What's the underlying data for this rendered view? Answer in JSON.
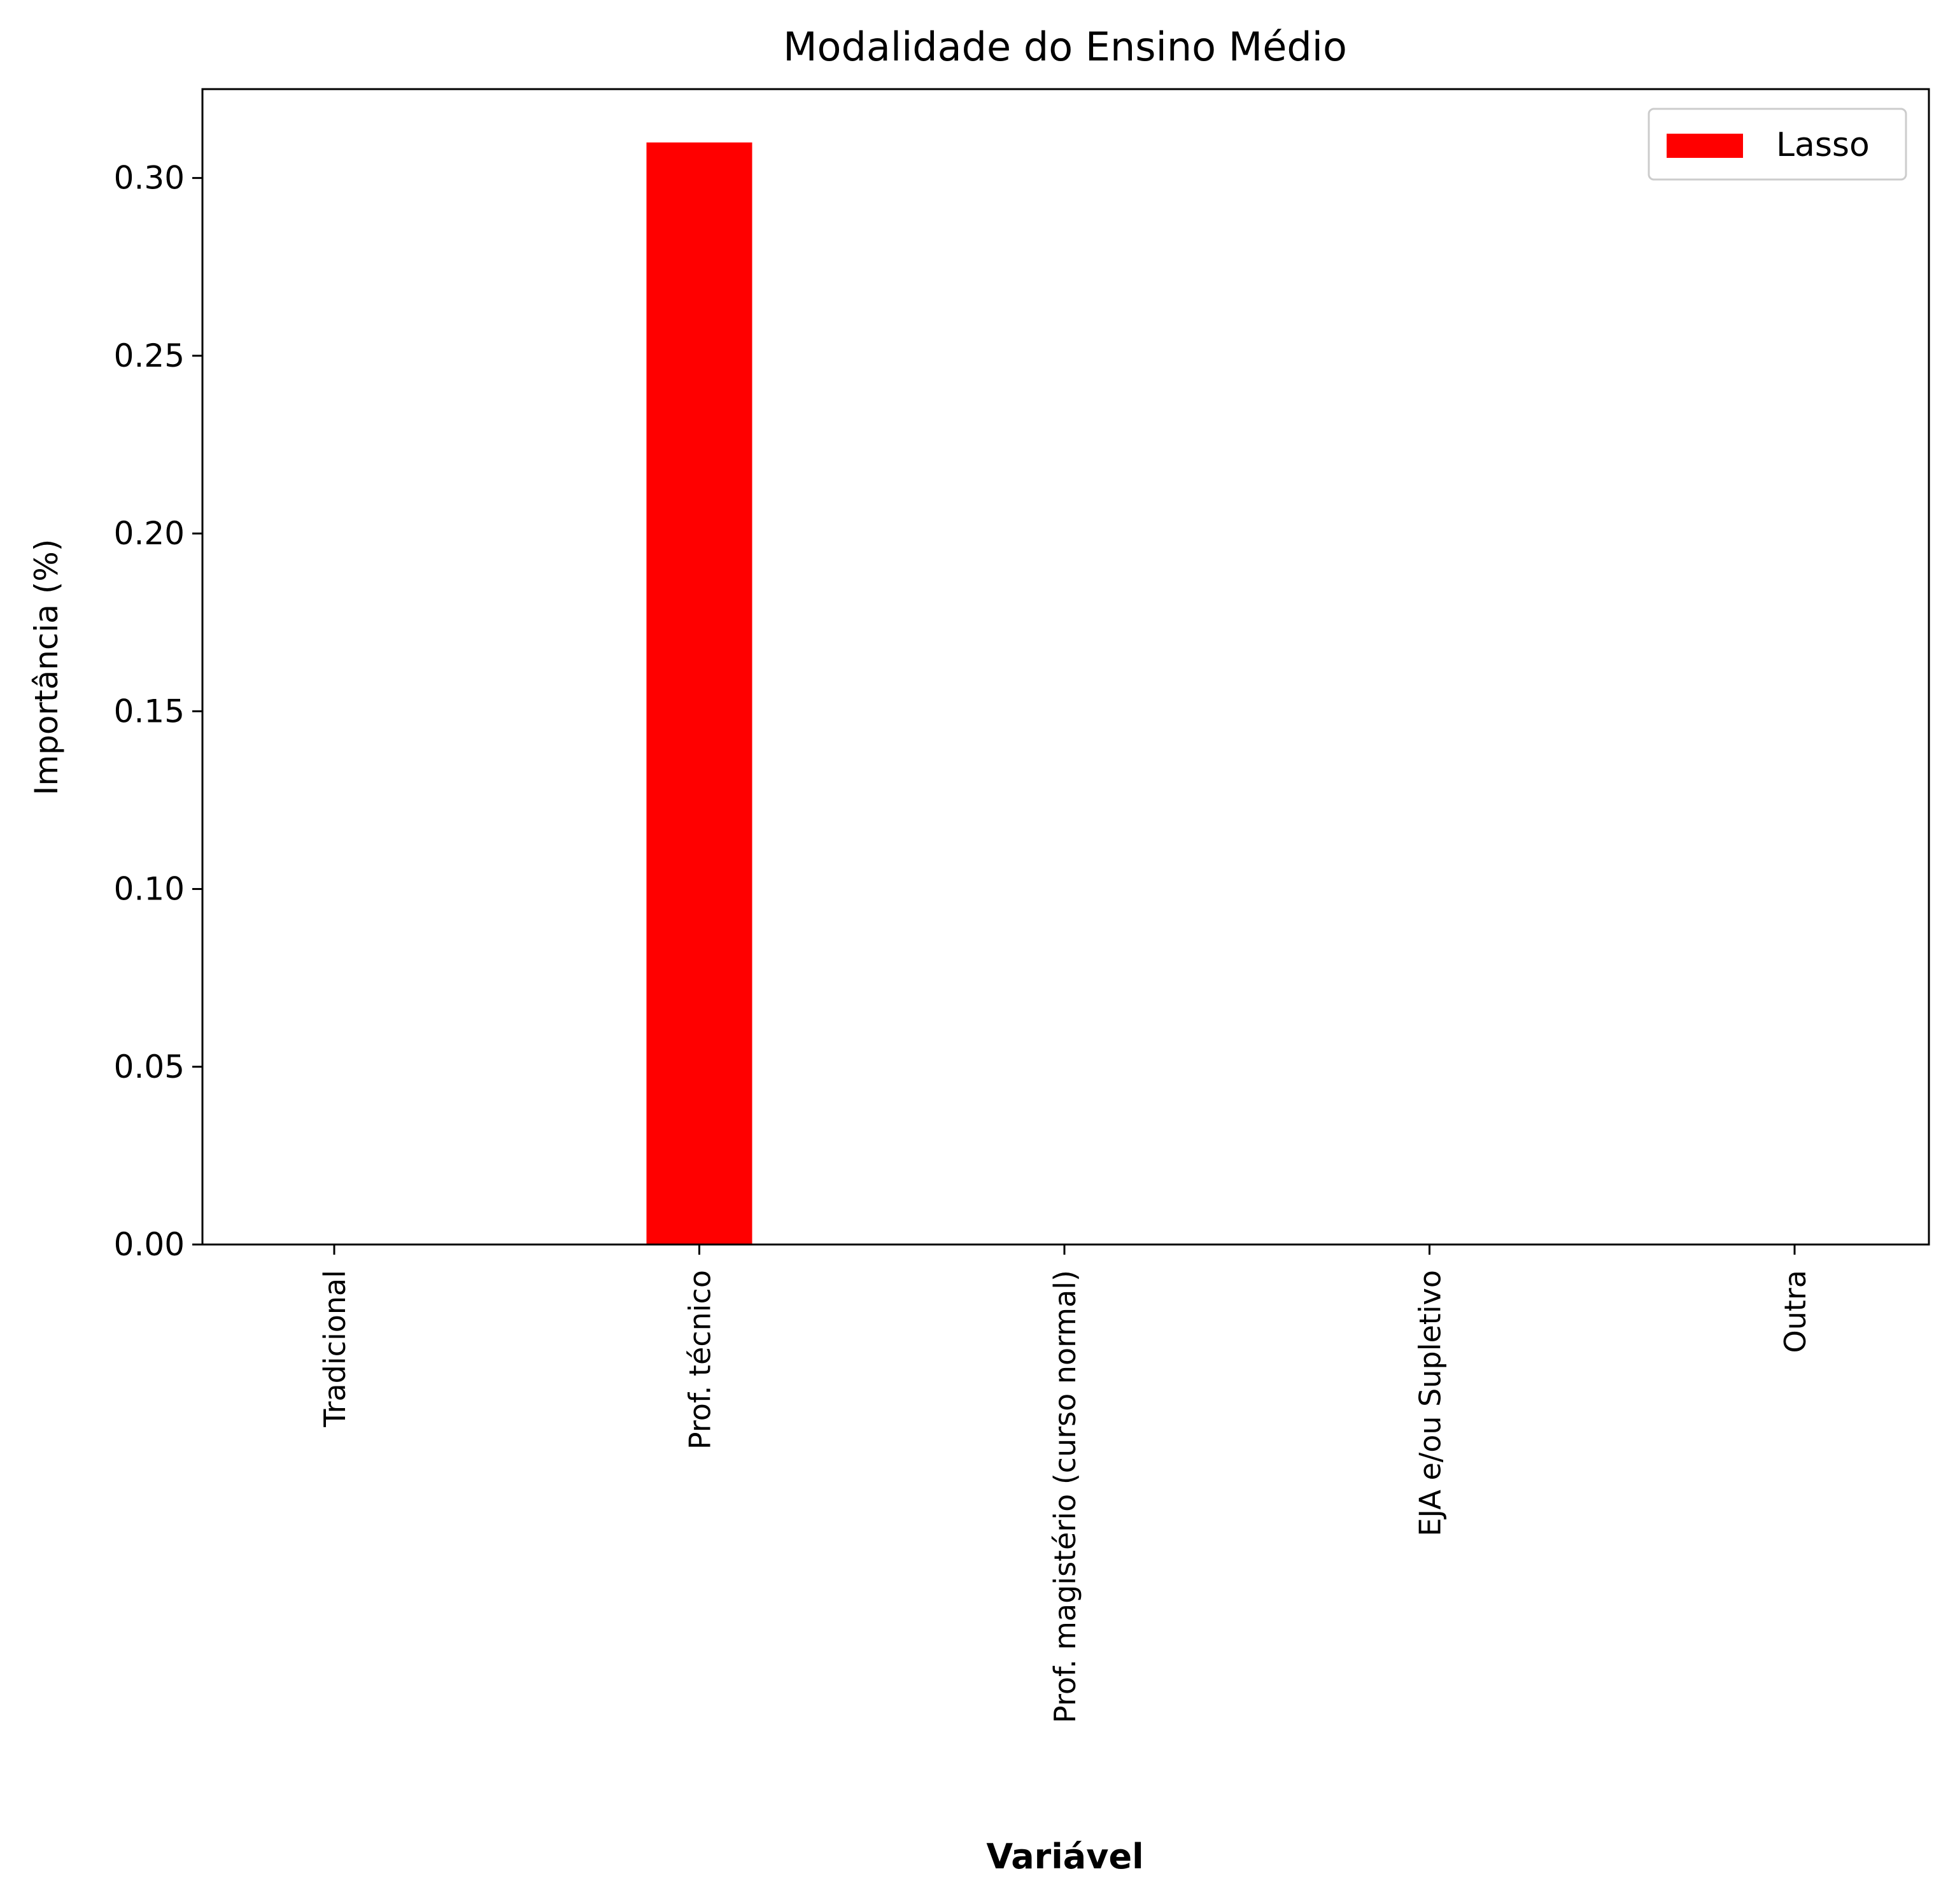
{
  "chart_data": {
    "type": "bar",
    "title": "Modalidade do Ensino Médio",
    "xlabel": "Variável",
    "ylabel": "Importância (%)",
    "categories": [
      "Tradicional",
      "Prof. técnico",
      "Prof. magistério (curso normal)",
      "EJA e/ou Supletivo",
      "Outra"
    ],
    "series": [
      {
        "name": "Lasso",
        "color": "#ff0000",
        "values": [
          0.0,
          0.31,
          0.0,
          0.0,
          0.0
        ]
      }
    ],
    "yticks": [
      "0.00",
      "0.05",
      "0.10",
      "0.15",
      "0.20",
      "0.25",
      "0.30"
    ],
    "ylim": [
      0,
      0.325
    ],
    "grid": false,
    "legend_position": "top-right"
  }
}
